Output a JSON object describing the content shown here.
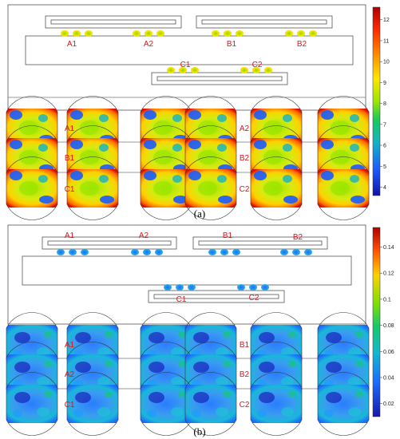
{
  "figure_a": {
    "caption": "(a)",
    "schematic_labels": [
      "A1",
      "A2",
      "B1",
      "B2",
      "C1",
      "C2"
    ],
    "row_labels": [
      [
        "A1",
        "A2"
      ],
      [
        "B1",
        "B2"
      ],
      [
        "C1",
        "C2"
      ]
    ],
    "colorbar": {
      "ticks": [
        "12",
        "11",
        "10",
        "9",
        "8",
        "7",
        "6",
        "5",
        "4"
      ],
      "range": [
        3.6,
        12.6
      ],
      "colors": [
        "#b00000",
        "#ff2a00",
        "#ff9a00",
        "#ffe600",
        "#9be600",
        "#16c95a",
        "#12b3c8",
        "#1a5bff",
        "#1212a8"
      ]
    }
  },
  "figure_b": {
    "caption": "(b)",
    "schematic_labels": [
      "A1",
      "A2",
      "B1",
      "B2",
      "C1",
      "C2"
    ],
    "row_labels": [
      [
        "A1",
        "B1"
      ],
      [
        "A2",
        "B2"
      ],
      [
        "C1",
        "C2"
      ]
    ],
    "colorbar": {
      "ticks": [
        "0.14",
        "0.12",
        "0.1",
        "0.08",
        "0.06",
        "0.04",
        "0.02"
      ],
      "range": [
        0.01,
        0.155
      ],
      "colors": [
        "#b00000",
        "#ff5000",
        "#ffd000",
        "#7fe000",
        "#16c96a",
        "#12b9d0",
        "#1a6bff",
        "#1818a8"
      ]
    }
  }
}
